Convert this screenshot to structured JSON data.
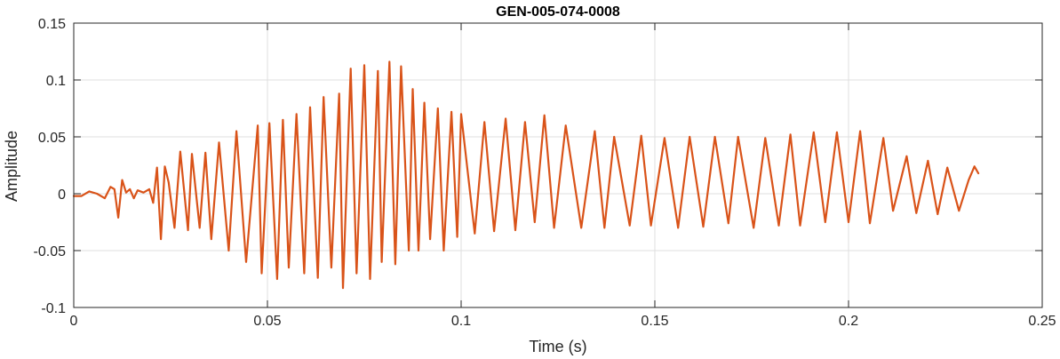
{
  "chart_data": {
    "type": "line",
    "title": "GEN-005-074-0008",
    "xlabel": "Time (s)",
    "ylabel": "Amplitude",
    "xlim": [
      0,
      0.25
    ],
    "ylim": [
      -0.1,
      0.15
    ],
    "xticks": [
      0,
      0.05,
      0.1,
      0.15,
      0.2,
      0.25
    ],
    "xtick_labels": [
      "0",
      "0.05",
      "0.1",
      "0.15",
      "0.2",
      "0.25"
    ],
    "yticks": [
      -0.1,
      -0.05,
      0,
      0.05,
      0.1,
      0.15
    ],
    "ytick_labels": [
      "-0.1",
      "-0.05",
      "0",
      "0.05",
      "0.1",
      "0.15"
    ],
    "grid": true,
    "box": true,
    "line_color": "#D95319",
    "series": [
      {
        "x": [
          0,
          0.002,
          0.004,
          0.006,
          0.008,
          0.0095,
          0.0105,
          0.0115,
          0.0125,
          0.0135,
          0.0145,
          0.0155,
          0.0165,
          0.018,
          0.0195,
          0.0205,
          0.0215,
          0.0225,
          0.0235,
          0.0245,
          0.026,
          0.0275,
          0.0295,
          0.0305,
          0.0325,
          0.034,
          0.0355,
          0.0375,
          0.04,
          0.042,
          0.0445,
          0.0475,
          0.0485,
          0.0505,
          0.0525,
          0.054,
          0.0555,
          0.0575,
          0.0595,
          0.061,
          0.063,
          0.0645,
          0.0665,
          0.0685,
          0.0695,
          0.0715,
          0.073,
          0.075,
          0.0765,
          0.0785,
          0.0795,
          0.0815,
          0.083,
          0.0845,
          0.0865,
          0.0875,
          0.089,
          0.0905,
          0.092,
          0.094,
          0.0955,
          0.0975,
          0.099,
          0.1,
          0.1035,
          0.106,
          0.1085,
          0.1115,
          0.114,
          0.1165,
          0.119,
          0.1215,
          0.124,
          0.127,
          0.131,
          0.1345,
          0.137,
          0.1395,
          0.1435,
          0.1465,
          0.149,
          0.1525,
          0.156,
          0.159,
          0.1625,
          0.1655,
          0.169,
          0.1715,
          0.1755,
          0.1785,
          0.182,
          0.185,
          0.1875,
          0.191,
          0.194,
          0.197,
          0.2,
          0.203,
          0.2055,
          0.209,
          0.2115,
          0.215,
          0.2175,
          0.2205,
          0.223,
          0.2255,
          0.2285,
          0.231,
          0.2325,
          0.2335
        ],
        "y": [
          -0.002,
          -0.002,
          0.002,
          0.0,
          -0.004,
          0.006,
          0.004,
          -0.021,
          0.012,
          0.001,
          0.004,
          -0.004,
          0.003,
          0.001,
          0.004,
          -0.008,
          0.023,
          -0.04,
          0.024,
          0.01,
          -0.03,
          0.037,
          -0.032,
          0.035,
          -0.03,
          0.036,
          -0.04,
          0.045,
          -0.05,
          0.055,
          -0.06,
          0.06,
          -0.07,
          0.062,
          -0.075,
          0.065,
          -0.065,
          0.07,
          -0.07,
          0.076,
          -0.074,
          0.085,
          -0.065,
          0.088,
          -0.083,
          0.11,
          -0.07,
          0.113,
          -0.075,
          0.108,
          -0.06,
          0.116,
          -0.062,
          0.112,
          -0.05,
          0.092,
          -0.05,
          0.08,
          -0.04,
          0.075,
          -0.05,
          0.072,
          -0.038,
          0.07,
          -0.035,
          0.063,
          -0.033,
          0.066,
          -0.032,
          0.063,
          -0.025,
          0.069,
          -0.03,
          0.06,
          -0.03,
          0.055,
          -0.03,
          0.05,
          -0.028,
          0.051,
          -0.028,
          0.049,
          -0.03,
          0.05,
          -0.029,
          0.05,
          -0.026,
          0.05,
          -0.03,
          0.049,
          -0.028,
          0.052,
          -0.028,
          0.054,
          -0.025,
          0.054,
          -0.025,
          0.055,
          -0.026,
          0.049,
          -0.015,
          0.033,
          -0.017,
          0.029,
          -0.018,
          0.023,
          -0.015,
          0.012,
          0.024,
          0.018
        ]
      }
    ]
  }
}
